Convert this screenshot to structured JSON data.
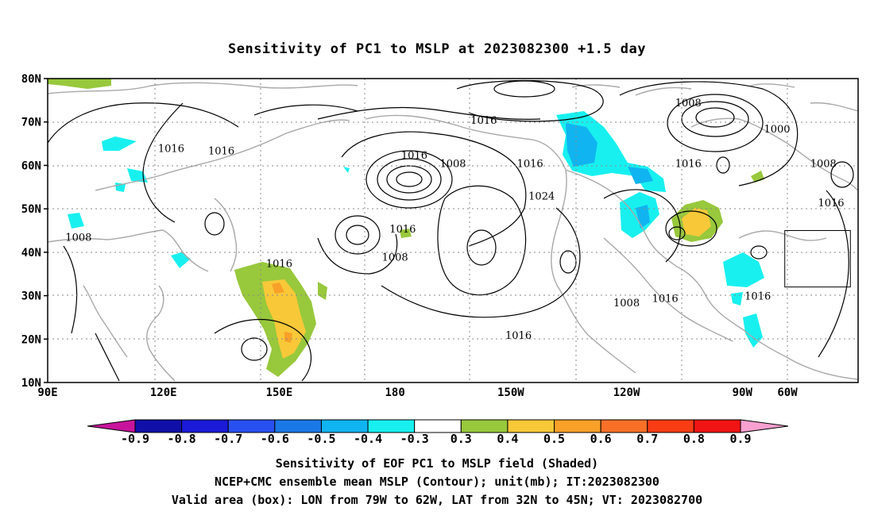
{
  "title": "Sensitivity of PC1 to MSLP at 2023082300 +1.5 day",
  "map": {
    "lat_labels": [
      "80N",
      "70N",
      "60N",
      "50N",
      "40N",
      "30N",
      "20N",
      "10N"
    ],
    "lon_labels": [
      "90E",
      "120E",
      "150E",
      "180",
      "150W",
      "120W",
      "90W",
      "60W"
    ],
    "contour_labels": [
      {
        "text": "1016",
        "lon": 122,
        "lat": 64
      },
      {
        "text": "1016",
        "lon": 135,
        "lat": 63.5
      },
      {
        "text": "1016",
        "lon": -157,
        "lat": 70.5
      },
      {
        "text": "1016",
        "lon": -175,
        "lat": 62.5
      },
      {
        "text": "1008",
        "lon": -165,
        "lat": 60.5
      },
      {
        "text": "1016",
        "lon": -145,
        "lat": 60.5
      },
      {
        "text": "1024",
        "lon": -142,
        "lat": 53
      },
      {
        "text": "1008",
        "lon": -104,
        "lat": 74.5
      },
      {
        "text": "1016",
        "lon": -104,
        "lat": 60.5
      },
      {
        "text": "1000",
        "lon": -81,
        "lat": 68.5
      },
      {
        "text": "1008",
        "lon": -69,
        "lat": 60.5
      },
      {
        "text": "1016",
        "lon": -67,
        "lat": 51.5
      },
      {
        "text": "1008",
        "lon": 98,
        "lat": 43.5
      },
      {
        "text": "1016",
        "lon": -178,
        "lat": 45.5
      },
      {
        "text": "1016",
        "lon": 150,
        "lat": 37.5
      },
      {
        "text": "1008",
        "lon": -180,
        "lat": 39
      },
      {
        "text": "1008",
        "lon": -120,
        "lat": 28.5
      },
      {
        "text": "1016",
        "lon": -110,
        "lat": 29.5
      },
      {
        "text": "1016",
        "lon": -86,
        "lat": 30
      },
      {
        "text": "1016",
        "lon": -148,
        "lat": 21
      }
    ],
    "valid_box": {
      "lon_min": -79,
      "lon_max": -62,
      "lat_min": 32,
      "lat_max": 45
    }
  },
  "colorbar": {
    "labels": [
      "-0.9",
      "-0.8",
      "-0.7",
      "-0.6",
      "-0.5",
      "-0.4",
      "-0.3",
      "0.3",
      "0.4",
      "0.5",
      "0.6",
      "0.7",
      "0.8",
      "0.9"
    ],
    "colors": [
      "#1010a8",
      "#1a1ad8",
      "#2850f0",
      "#1a78e6",
      "#10b4f0",
      "#18f0f0",
      "#ffffff",
      "#98c83c",
      "#f8c838",
      "#f8a028",
      "#f87028",
      "#f83c14",
      "#f01414"
    ],
    "low_end": "#c8149c",
    "high_end": "#f8a0d0"
  },
  "captions": {
    "line1": "Sensitivity of EOF PC1 to MSLP field (Shaded)",
    "line2": "NCEP+CMC ensemble mean MSLP (Contour); unit(mb); IT:2023082300",
    "line3": "Valid area (box): LON from 79W to 62W, LAT from 32N to 45N; VT: 2023082700"
  }
}
